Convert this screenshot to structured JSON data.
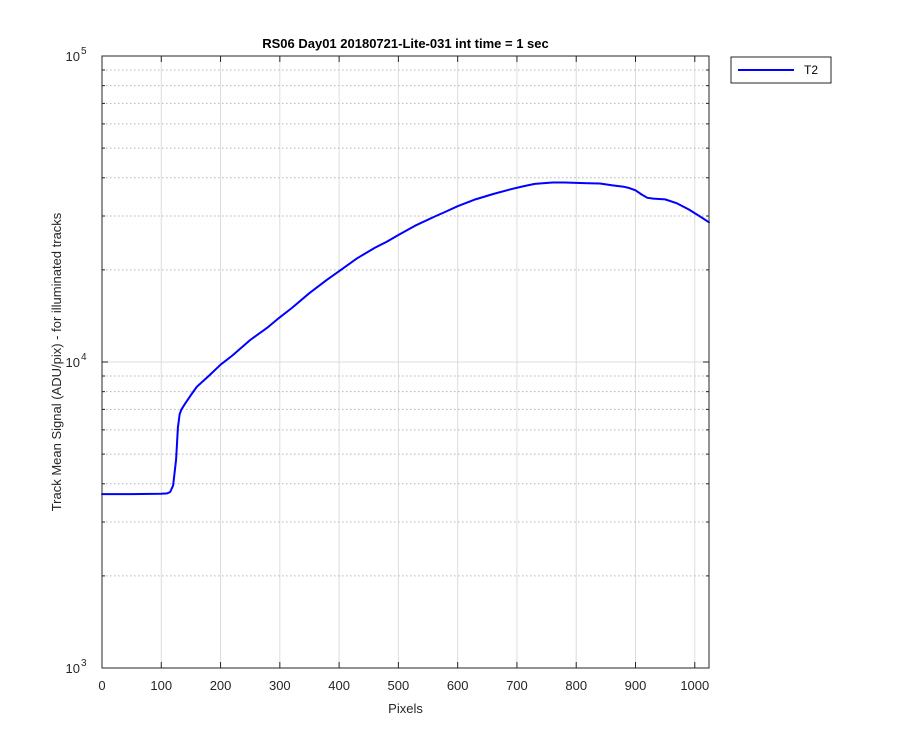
{
  "chart_data": {
    "type": "line",
    "title": "RS06 Day01 20180721-Lite-031 int time = 1 sec",
    "xlabel": "Pixels",
    "ylabel": "Track Mean Signal (ADU/pix) - for illuminated tracks",
    "xlim": [
      0,
      1024
    ],
    "ylim": [
      1000,
      100000
    ],
    "yscale": "log",
    "grid": true,
    "legend_placement": "outside-top-right",
    "x_ticks": [
      0,
      100,
      200,
      300,
      400,
      500,
      600,
      700,
      800,
      900,
      1000
    ],
    "x_tick_labels": [
      "0",
      "100",
      "200",
      "300",
      "400",
      "500",
      "600",
      "700",
      "800",
      "900",
      "1000"
    ],
    "y_ticks": [
      {
        "value": 1000,
        "base": "10",
        "exp": "3"
      },
      {
        "value": 10000,
        "base": "10",
        "exp": "4"
      },
      {
        "value": 100000,
        "base": "10",
        "exp": "5"
      }
    ],
    "series": [
      {
        "name": "T2",
        "color": "#0000ff",
        "x": [
          0,
          50,
          100,
          110,
          115,
          120,
          125,
          128,
          131,
          134,
          140,
          150,
          160,
          180,
          200,
          220,
          250,
          280,
          300,
          320,
          350,
          380,
          400,
          430,
          460,
          480,
          500,
          530,
          560,
          580,
          600,
          630,
          660,
          690,
          710,
          730,
          760,
          780,
          800,
          820,
          840,
          860,
          880,
          890,
          900,
          910,
          920,
          930,
          950,
          970,
          990,
          1010,
          1024
        ],
        "values": [
          3700,
          3700,
          3710,
          3720,
          3760,
          3950,
          4800,
          6100,
          6750,
          7000,
          7300,
          7800,
          8300,
          9000,
          9800,
          10500,
          11800,
          13000,
          14000,
          15000,
          16800,
          18600,
          19800,
          21800,
          23600,
          24700,
          26000,
          28000,
          29800,
          31000,
          32300,
          34000,
          35400,
          36700,
          37500,
          38200,
          38600,
          38600,
          38500,
          38400,
          38300,
          37800,
          37400,
          37000,
          36400,
          35300,
          34400,
          34200,
          34000,
          33000,
          31500,
          29800,
          28600
        ]
      }
    ]
  }
}
